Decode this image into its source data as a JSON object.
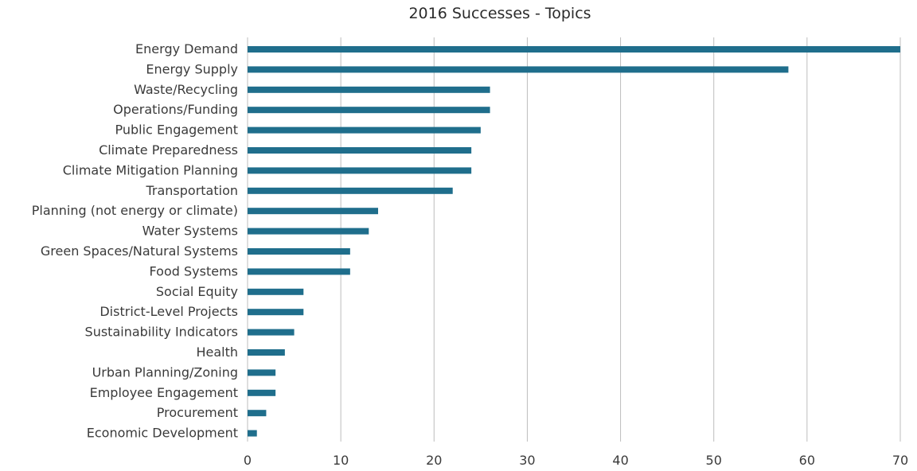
{
  "chart_data": {
    "type": "bar",
    "orientation": "horizontal",
    "title": "2016 Successes - Topics",
    "xlabel": "",
    "ylabel": "",
    "xlim": [
      0,
      70
    ],
    "x_ticks": [
      0,
      10,
      20,
      30,
      40,
      50,
      60,
      70
    ],
    "grid": true,
    "legend": "none",
    "bar_color": "#1f6e8c",
    "categories": [
      "Energy Demand",
      "Energy Supply",
      "Waste/Recycling",
      "Operations/Funding",
      "Public Engagement",
      "Climate Preparedness",
      "Climate Mitigation Planning",
      "Transportation",
      "Planning (not energy or climate)",
      "Water Systems",
      "Green Spaces/Natural Systems",
      "Food Systems",
      "Social Equity",
      "District-Level Projects",
      "Sustainability Indicators",
      "Health",
      "Urban Planning/Zoning",
      "Employee Engagement",
      "Procurement",
      "Economic Development"
    ],
    "values": [
      70,
      58,
      26,
      26,
      25,
      24,
      24,
      22,
      14,
      13,
      11,
      11,
      6,
      6,
      5,
      4,
      3,
      3,
      2,
      1
    ]
  }
}
